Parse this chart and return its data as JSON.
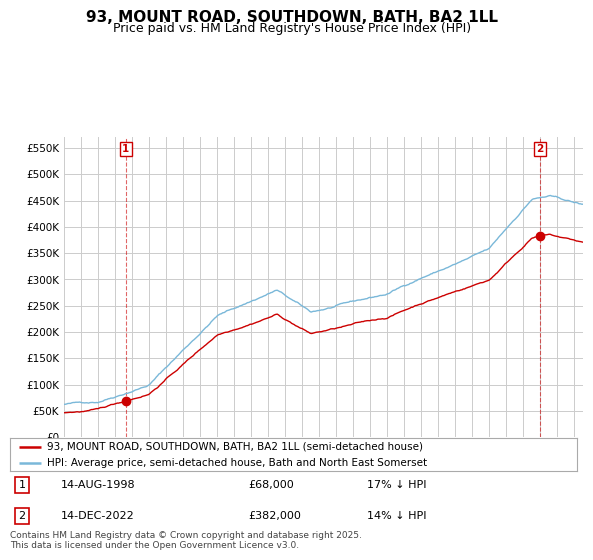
{
  "title": "93, MOUNT ROAD, SOUTHDOWN, BATH, BA2 1LL",
  "subtitle": "Price paid vs. HM Land Registry's House Price Index (HPI)",
  "title_fontsize": 11,
  "subtitle_fontsize": 9,
  "ylim": [
    0,
    570000
  ],
  "yticks": [
    0,
    50000,
    100000,
    150000,
    200000,
    250000,
    300000,
    350000,
    400000,
    450000,
    500000,
    550000
  ],
  "ytick_labels": [
    "£0",
    "£50K",
    "£100K",
    "£150K",
    "£200K",
    "£250K",
    "£300K",
    "£350K",
    "£400K",
    "£450K",
    "£500K",
    "£550K"
  ],
  "hpi_color": "#7ab8d9",
  "price_color": "#cc0000",
  "marker_color": "#cc0000",
  "vline_color": "#cc0000",
  "background_color": "#ffffff",
  "grid_color": "#cccccc",
  "legend_labels": [
    "93, MOUNT ROAD, SOUTHDOWN, BATH, BA2 1LL (semi-detached house)",
    "HPI: Average price, semi-detached house, Bath and North East Somerset"
  ],
  "sale1_label": "1",
  "sale1_date": "14-AUG-1998",
  "sale1_price": "£68,000",
  "sale1_hpi_diff": "17% ↓ HPI",
  "sale1_year": 1998.62,
  "sale1_value": 68000,
  "sale2_label": "2",
  "sale2_date": "14-DEC-2022",
  "sale2_price": "£382,000",
  "sale2_hpi_diff": "14% ↓ HPI",
  "sale2_year": 2022.96,
  "sale2_value": 382000,
  "footer_text": "Contains HM Land Registry data © Crown copyright and database right 2025.\nThis data is licensed under the Open Government Licence v3.0.",
  "xmin": 1995,
  "xmax": 2025.5
}
